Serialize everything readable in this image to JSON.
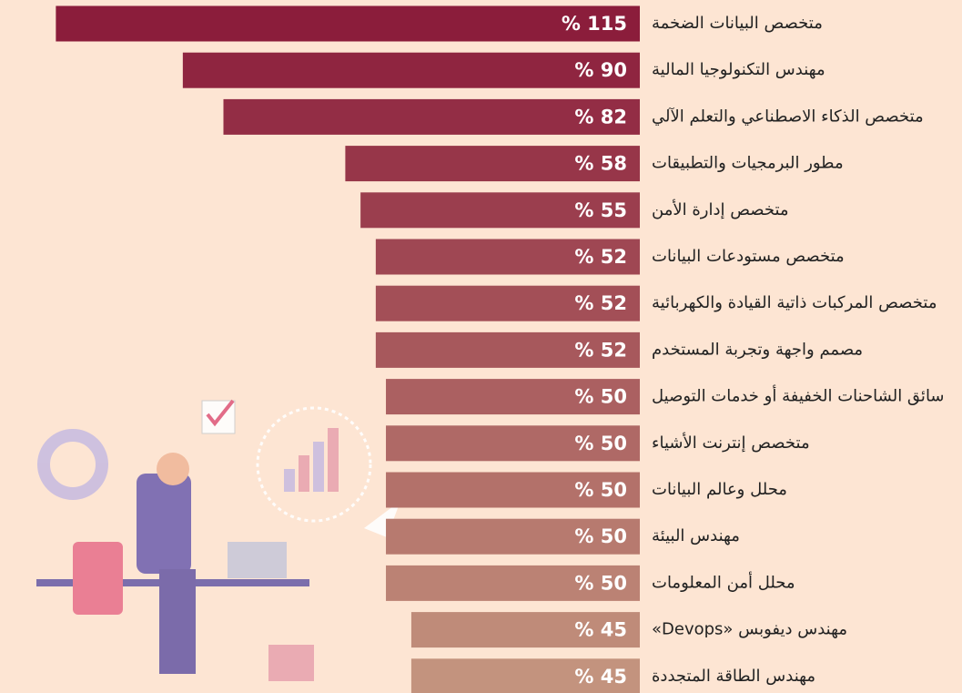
{
  "chart_data": {
    "type": "barh",
    "categories": [
      "متخصص البيانات الضخمة",
      "مهندس التكنولوجيا المالية",
      "متخصص الذكاء الاصطناعي والتعلم الآلي",
      "مطور البرمجيات والتطبيقات",
      "متخصص إدارة الأمن",
      "متخصص مستودعات البيانات",
      "متخصص المركبات ذاتية القيادة والكهربائية",
      "مصمم واجهة وتجربة المستخدم",
      "سائق الشاحنات الخفيفة أو خدمات التوصيل",
      "متخصص إنترنت الأشياء",
      "محلل وعالم البيانات",
      "مهندس البيئة",
      "محلل أمن المعلومات",
      "مهندس ديفوبس «Devops»",
      "مهندس الطاقة المتجددة"
    ],
    "values": [
      115,
      90,
      82,
      58,
      55,
      52,
      52,
      52,
      50,
      50,
      50,
      50,
      50,
      45,
      45
    ],
    "value_labels": [
      "% 115",
      "% 90",
      "% 82",
      "% 58",
      "% 55",
      "% 52",
      "% 52",
      "% 52",
      "% 50",
      "% 50",
      "% 50",
      "% 50",
      "% 50",
      "% 45",
      "% 45"
    ],
    "colors": [
      "#8b1d3b",
      "#8f2540",
      "#932d45",
      "#973649",
      "#9b3e4e",
      "#9f4753",
      "#a34f57",
      "#a7585c",
      "#ab6061",
      "#af6966",
      "#b3716a",
      "#b77a6f",
      "#bb8274",
      "#bf8b79",
      "#c3937e"
    ],
    "xlim": [
      0,
      126
    ]
  }
}
